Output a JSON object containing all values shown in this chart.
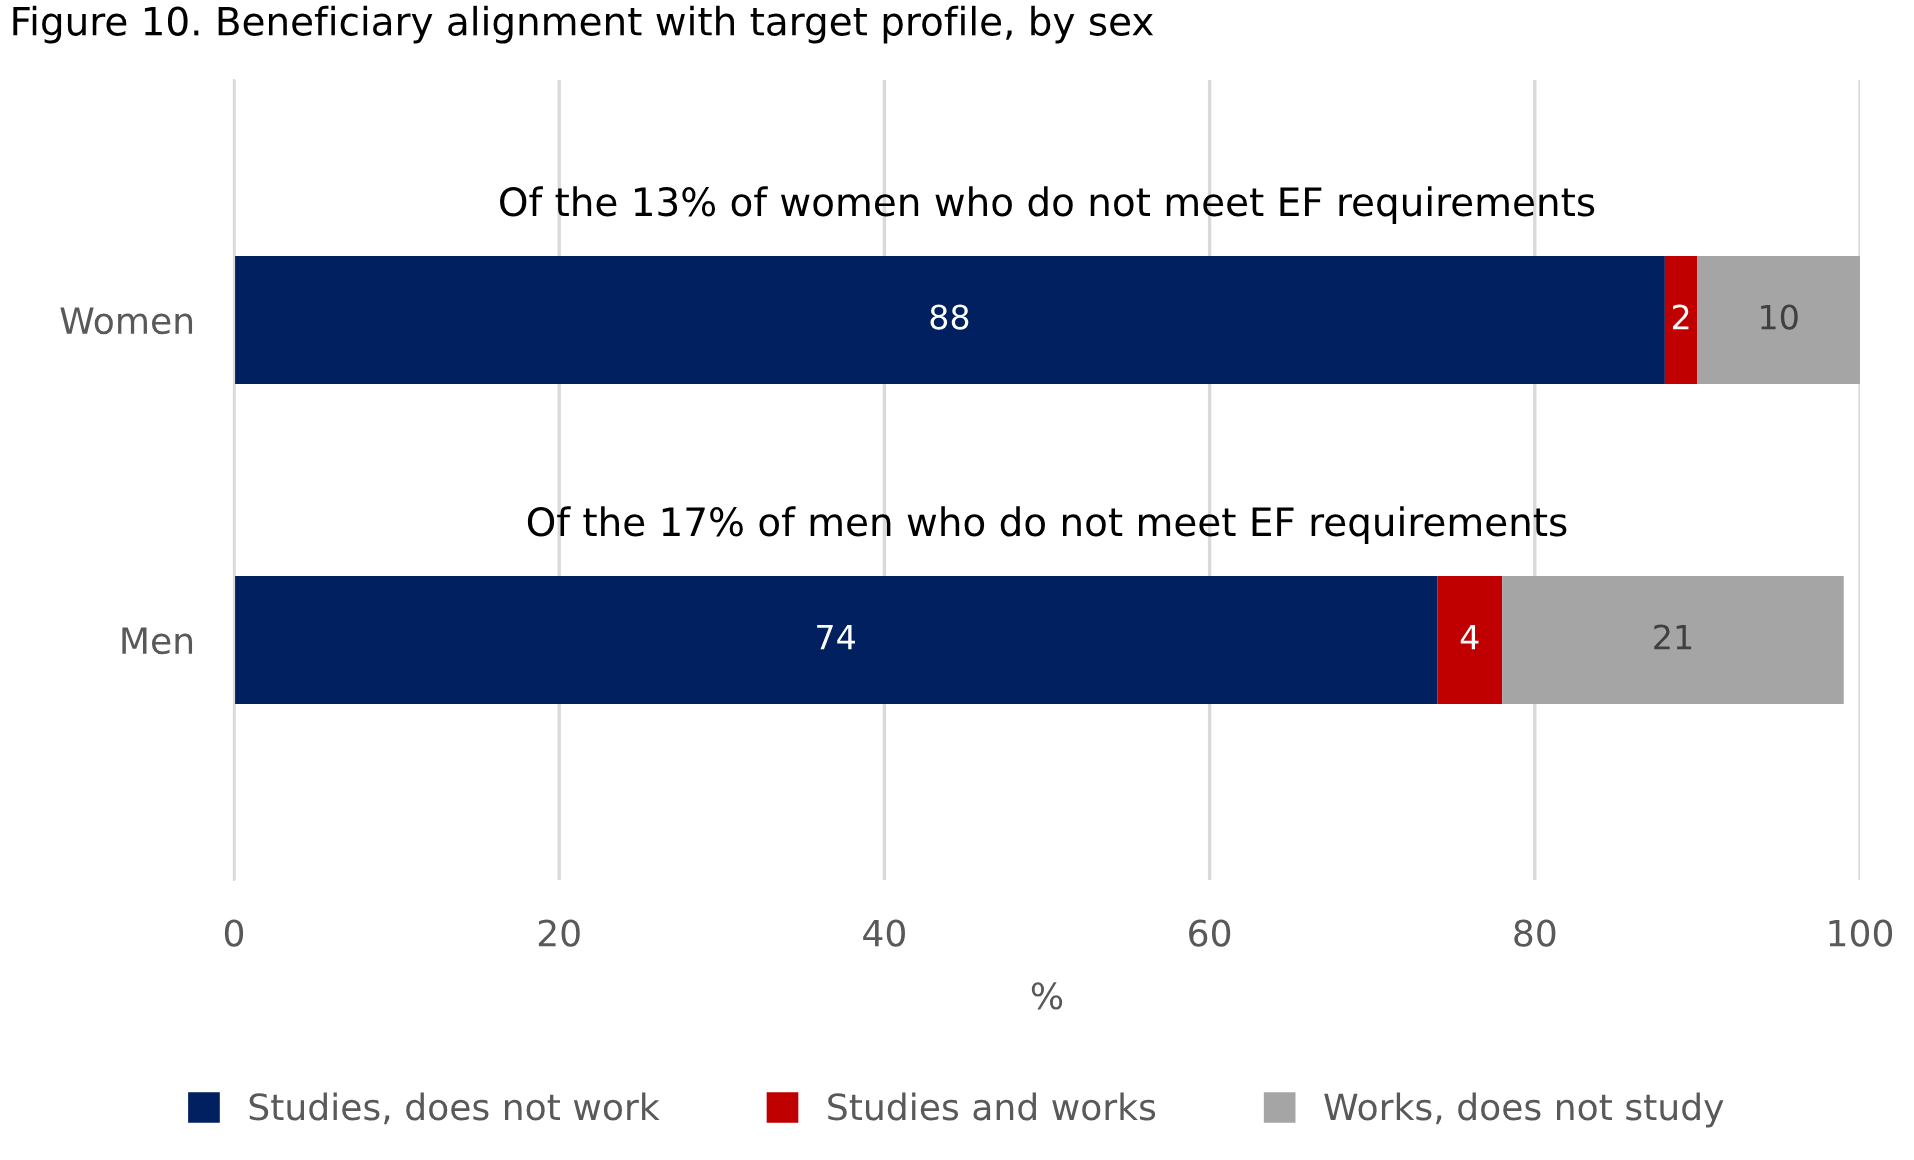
{
  "chart_data": {
    "type": "bar",
    "orientation": "horizontal",
    "stacked": true,
    "title": "Figure 10. Beneficiary alignment with target profile, by sex",
    "xlabel": "%",
    "categories": [
      "Women",
      "Men"
    ],
    "series": [
      {
        "name": "Studies, does not work",
        "color": "#002060",
        "values": [
          88,
          74
        ]
      },
      {
        "name": "Studies and works",
        "color": "#c00000",
        "values": [
          2,
          4
        ]
      },
      {
        "name": "Works, does not study",
        "color": "#a5a5a5",
        "values": [
          10,
          21
        ]
      }
    ],
    "annotations": [
      "Of the 13% of women who do not meet EF requirements",
      "Of the 17% of men who do not meet EF requirements"
    ],
    "xlim": [
      0,
      100
    ],
    "xticks": [
      0,
      20,
      40,
      60,
      80,
      100
    ],
    "grid": "x",
    "legend": "bottom",
    "data_labels": true
  }
}
